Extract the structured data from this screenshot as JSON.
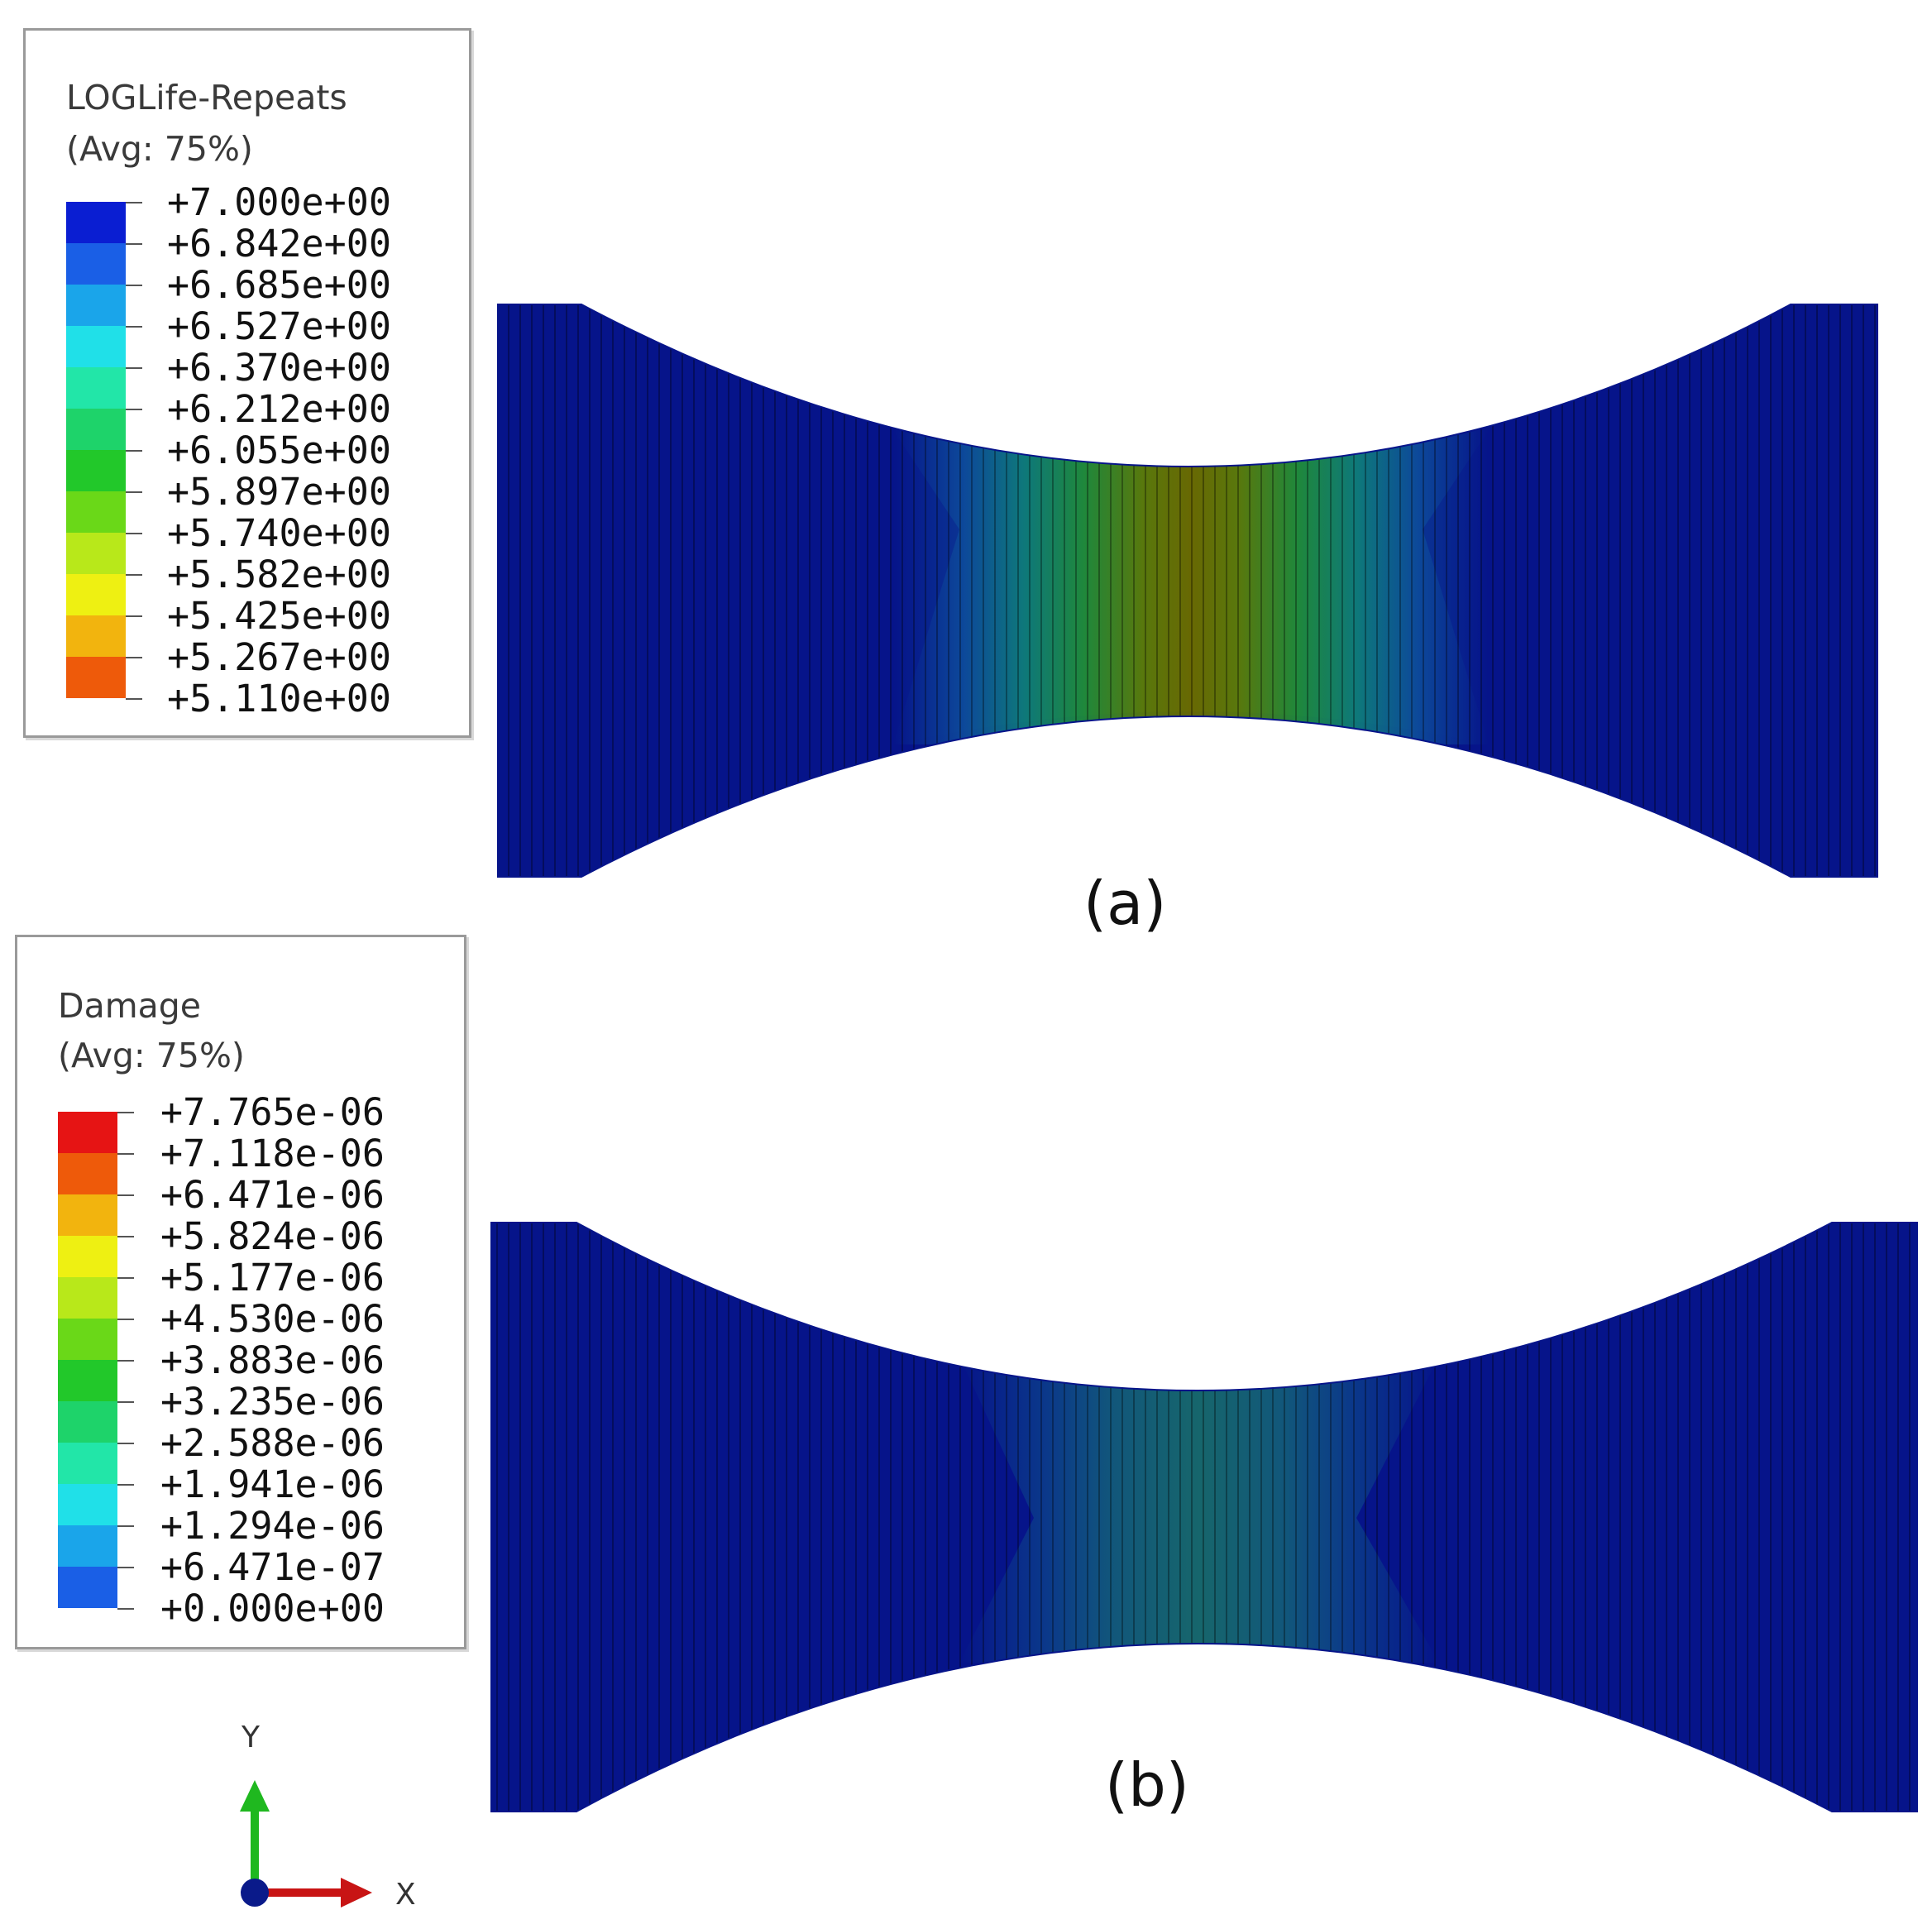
{
  "figure_a": {
    "legend": {
      "title": "LOGLife-Repeats",
      "subtitle": "(Avg: 75%)",
      "values": [
        "+7.000e+00",
        "+6.842e+00",
        "+6.685e+00",
        "+6.527e+00",
        "+6.370e+00",
        "+6.212e+00",
        "+6.055e+00",
        "+5.897e+00",
        "+5.740e+00",
        "+5.582e+00",
        "+5.425e+00",
        "+5.267e+00",
        "+5.110e+00"
      ],
      "colors": [
        "#0a1ed2",
        "#1a5fe6",
        "#1aa5ea",
        "#20e0e8",
        "#22e6a8",
        "#1ed36a",
        "#22c82a",
        "#6ad818",
        "#b8e81a",
        "#eef012",
        "#f2b40e",
        "#ee5a0a",
        "#e61414"
      ]
    },
    "caption": "(a)"
  },
  "figure_b": {
    "legend": {
      "title": "Damage",
      "subtitle": "(Avg: 75%)",
      "values": [
        "+7.765e-06",
        "+7.118e-06",
        "+6.471e-06",
        "+5.824e-06",
        "+5.177e-06",
        "+4.530e-06",
        "+3.883e-06",
        "+3.235e-06",
        "+2.588e-06",
        "+1.941e-06",
        "+1.294e-06",
        "+6.471e-07",
        "+0.000e+00"
      ],
      "colors": [
        "#e61414",
        "#ee5a0a",
        "#f2b40e",
        "#eef012",
        "#b8e81a",
        "#6ad818",
        "#22c82a",
        "#1ed36a",
        "#22e6a8",
        "#20e0e8",
        "#1aa5ea",
        "#1a5fe6",
        "#0a1ed2"
      ]
    },
    "caption": "(b)"
  },
  "triad": {
    "y_label": "Y",
    "x_label": "X"
  }
}
